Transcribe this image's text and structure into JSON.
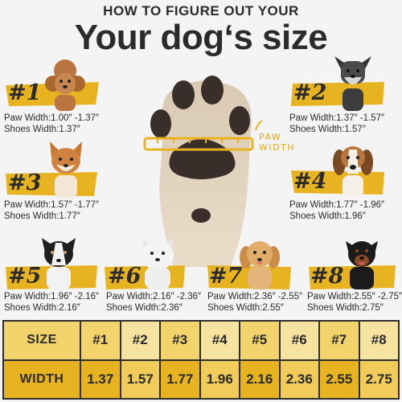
{
  "header": {
    "subtitle": "HOW TO FIGURE OUT YOUR",
    "title": "Your dog‘s size"
  },
  "paw_label": "PAW WIDTH",
  "colors": {
    "accent": "#e7b320",
    "accent_light": "#f2d36c",
    "text": "#2b2b2b"
  },
  "dogs": [
    {
      "num": "#1",
      "paw": "Paw Width:1.00″ -1.37″",
      "shoes": "Shoes Width:1.37″",
      "icon": "poodle"
    },
    {
      "num": "#2",
      "paw": "Paw Width:1.37″ -1.57″",
      "shoes": "Shoes Width:1.57″",
      "icon": "schnauzer"
    },
    {
      "num": "#3",
      "paw": "Paw Width:1.57″ -1.77″",
      "shoes": "Shoes Width:1.77″",
      "icon": "shiba-inu"
    },
    {
      "num": "#4",
      "paw": "Paw Width:1.77″ -1.96″",
      "shoes": "Shoes Width:1.96″",
      "icon": "beagle"
    },
    {
      "num": "#5",
      "paw": "Paw Width:1.96″ -2.16″",
      "shoes": "Shoes Width:2.16″",
      "icon": "border-collie"
    },
    {
      "num": "#6",
      "paw": "Paw Width:2.16″ -2.36″",
      "shoes": "Shoes Width:2.36″",
      "icon": "samoyed"
    },
    {
      "num": "#7",
      "paw": "Paw Width:2.36″ -2.55″",
      "shoes": "Shoes Width:2.55″",
      "icon": "golden-retriever"
    },
    {
      "num": "#8",
      "paw": "Paw Width:2.55″ -2.75″",
      "shoes": "Shoes Width:2.75″",
      "icon": "rottweiler"
    }
  ],
  "table": {
    "size_label": "SIZE",
    "width_label": "WIDTH",
    "sizes": [
      "#1",
      "#2",
      "#3",
      "#4",
      "#5",
      "#6",
      "#7",
      "#8"
    ],
    "widths": [
      "1.37",
      "1.57",
      "1.77",
      "1.96",
      "2.16",
      "2.36",
      "2.55",
      "2.75"
    ]
  }
}
